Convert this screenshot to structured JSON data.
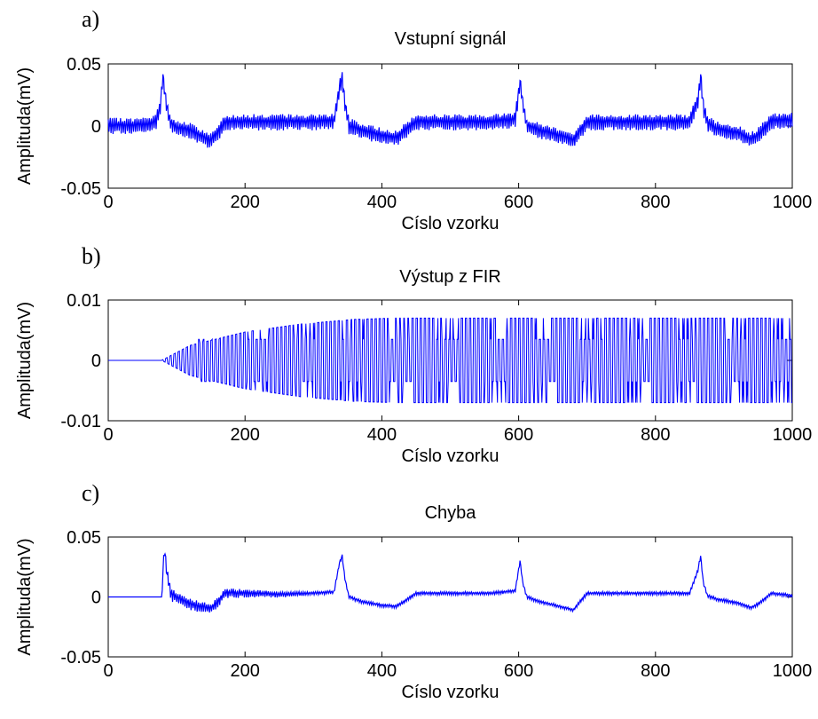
{
  "figure": {
    "panels": [
      {
        "letter": "a)",
        "chart_data": {
          "type": "line",
          "title": "Vstupní signál",
          "xlabel": "Císlo vzorku",
          "ylabel": "Amplituda(mV)",
          "xlim": [
            0,
            1000
          ],
          "ylim": [
            -0.05,
            0.05
          ],
          "xticks": [
            0,
            200,
            400,
            600,
            800,
            1000
          ],
          "xtick_labels": [
            "0",
            "200",
            "400",
            "600",
            "800",
            "1000"
          ],
          "yticks": [
            -0.05,
            0,
            0.05
          ],
          "ytick_labels": [
            "-0.05",
            "0",
            "0.05"
          ],
          "color": "#0000ff",
          "series": [
            {
              "x": [
                0,
                20,
                40,
                60,
                70,
                76,
                80,
                84,
                90,
                100,
                120,
                140,
                150,
                160,
                170,
                200,
                250,
                300,
                330,
                338,
                342,
                346,
                352,
                370,
                400,
                420,
                430,
                450,
                500,
                560,
                595,
                602,
                606,
                612,
                630,
                660,
                680,
                700,
                750,
                800,
                850,
                862,
                866,
                870,
                876,
                890,
                920,
                940,
                950,
                970,
                1000
              ],
              "y": [
                0,
                0,
                0,
                0.001,
                0.003,
                0.015,
                0.04,
                0.02,
                0.003,
                -0.002,
                -0.004,
                -0.01,
                -0.012,
                -0.006,
                0.003,
                0.003,
                0.003,
                0.003,
                0.004,
                0.03,
                0.038,
                0.018,
                0,
                -0.004,
                -0.008,
                -0.01,
                -0.006,
                0.003,
                0.003,
                0.003,
                0.005,
                0.035,
                0.018,
                0,
                -0.004,
                -0.008,
                -0.012,
                0.003,
                0.003,
                0.003,
                0.003,
                0.02,
                0.04,
                0.015,
                0.002,
                -0.003,
                -0.006,
                -0.011,
                -0.008,
                0.004,
                0.004
              ],
              "noise_amplitude": 0.006
            }
          ]
        }
      },
      {
        "letter": "b)",
        "chart_data": {
          "type": "line",
          "title": "Výstup z FIR",
          "xlabel": "Císlo vzorku",
          "ylabel": "Amplituda(mV)",
          "xlim": [
            0,
            1000
          ],
          "ylim": [
            -0.01,
            0.01
          ],
          "xticks": [
            0,
            200,
            400,
            600,
            800,
            1000
          ],
          "xtick_labels": [
            "0",
            "200",
            "400",
            "600",
            "800",
            "1000"
          ],
          "yticks": [
            -0.01,
            0,
            0.01
          ],
          "ytick_labels": [
            "-0.01",
            "0",
            "0.01"
          ],
          "color": "#0000ff",
          "series": [
            {
              "start": 78,
              "envelope_x": [
                78,
                120,
                200,
                280,
                360,
                420,
                1000
              ],
              "envelope_y": [
                0,
                0.0025,
                0.0047,
                0.006,
                0.0068,
                0.007,
                0.007
              ],
              "oscillation_period": 6,
              "mid_band_level": 0.0035
            }
          ]
        }
      },
      {
        "letter": "c)",
        "chart_data": {
          "type": "line",
          "title": "Chyba",
          "xlabel": "Císlo vzorku",
          "ylabel": "Amplituda(mV)",
          "xlim": [
            0,
            1000
          ],
          "ylim": [
            -0.05,
            0.05
          ],
          "xticks": [
            0,
            200,
            400,
            600,
            800,
            1000
          ],
          "xtick_labels": [
            "0",
            "200",
            "400",
            "600",
            "800",
            "1000"
          ],
          "yticks": [
            -0.05,
            0,
            0.05
          ],
          "ytick_labels": [
            "-0.05",
            "0",
            "0.05"
          ],
          "color": "#0000ff",
          "series": [
            {
              "x": [
                0,
                78,
                79,
                82,
                86,
                92,
                110,
                130,
                150,
                160,
                170,
                200,
                250,
                300,
                330,
                338,
                342,
                346,
                352,
                370,
                400,
                420,
                430,
                450,
                500,
                560,
                595,
                602,
                606,
                612,
                630,
                660,
                680,
                700,
                750,
                800,
                850,
                862,
                866,
                870,
                876,
                890,
                920,
                940,
                950,
                970,
                1000
              ],
              "y": [
                0,
                0,
                0.01,
                0.04,
                0.018,
                0.002,
                -0.004,
                -0.008,
                -0.01,
                -0.005,
                0.003,
                0.003,
                0.002,
                0.003,
                0.004,
                0.028,
                0.034,
                0.015,
                0,
                -0.004,
                -0.007,
                -0.008,
                -0.005,
                0.003,
                0.003,
                0.003,
                0.005,
                0.03,
                0.012,
                0,
                -0.004,
                -0.008,
                -0.011,
                0.003,
                0.003,
                0.003,
                0.003,
                0.022,
                0.034,
                0.012,
                0.001,
                -0.002,
                -0.005,
                -0.009,
                -0.006,
                0.003,
                0.001
              ],
              "noise_amplitude_before": 0.006,
              "noise_amplitude_after": 0.0015,
              "noise_decay_x": 300
            }
          ]
        }
      }
    ]
  }
}
